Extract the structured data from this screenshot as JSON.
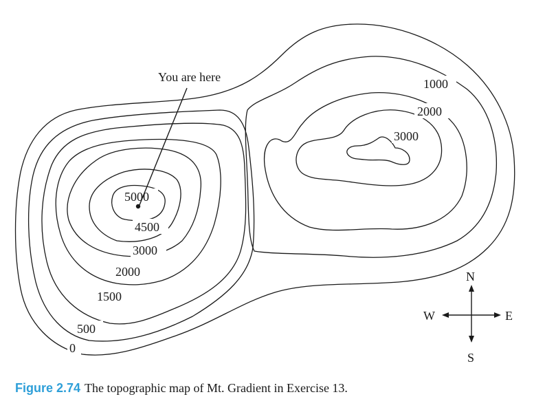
{
  "map": {
    "annotation": "You are here",
    "contour_labels": {
      "c0": "0",
      "c500": "500",
      "c1500": "1500",
      "c2000_west": "2000",
      "c3000_west": "3000",
      "c4500": "4500",
      "c5000": "5000",
      "c1000_east": "1000",
      "c2000_east": "2000",
      "c3000_east": "3000"
    },
    "compass": {
      "north": "N",
      "south": "S",
      "east": "E",
      "west": "W"
    }
  },
  "caption": {
    "figure_label": "Figure 2.74",
    "text": "The topographic map of Mt. Gradient in Exercise 13."
  }
}
